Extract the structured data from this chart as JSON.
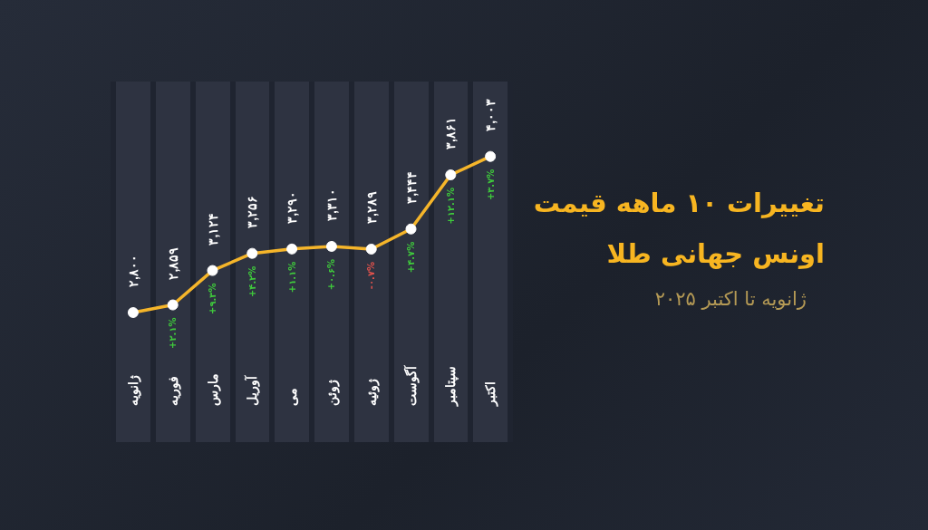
{
  "chart_data": {
    "type": "line",
    "title": "تغییرات ۱۰ ماهه قیمت اونس جهانی طلا",
    "subtitle": "ژانویه تا اکتبر ۲۰۲۵",
    "categories": [
      "ژانویه",
      "فوریه",
      "مارس",
      "آوریل",
      "می",
      "ژوئن",
      "ژوئیه",
      "آگوست",
      "سپتامبر",
      "اکتبر"
    ],
    "series": [
      {
        "color": "#f5b52a",
        "values": [
          2800,
          2859,
          3124,
          3256,
          3290,
          3310,
          3289,
          3444,
          3861,
          4003
        ],
        "value_labels": [
          "۲,۸۰۰",
          "۲,۸۵۹",
          "۳,۱۲۴",
          "۳,۲۵۶",
          "۳,۲۹۰",
          "۳,۳۱۰",
          "۳,۲۸۹",
          "۳,۴۴۴",
          "۳,۸۶۱",
          "۴,۰۰۳"
        ]
      }
    ],
    "annotations": [
      {
        "text": "+۲.۱%",
        "x": "فوریه",
        "y": 2859
      },
      {
        "text": "+۹.۳%",
        "x": "مارس",
        "y": 3124
      },
      {
        "text": "+۴.۲%",
        "x": "آوریل",
        "y": 3256
      },
      {
        "text": "+۱.۱%",
        "x": "می",
        "y": 3290
      },
      {
        "text": "+۰.۶%",
        "x": "ژوئن",
        "y": 3310
      },
      {
        "text": "-۰.۷%",
        "x": "ژوئیه",
        "y": 3289
      },
      {
        "text": "+۴.۷%",
        "x": "آگوست",
        "y": 3444
      },
      {
        "text": "+۱۲.۱%",
        "x": "سپتامبر",
        "y": 3861
      },
      {
        "text": "+۳.۷%",
        "x": "اکتبر",
        "y": 4003
      }
    ],
    "marker": "circle",
    "line_style": "solid"
  }
}
